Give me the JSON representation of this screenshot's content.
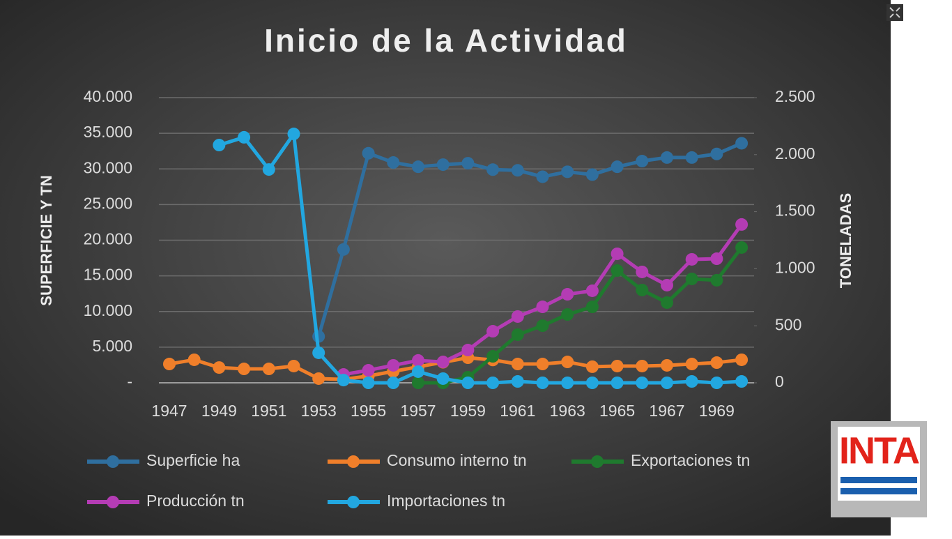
{
  "chart_data": {
    "type": "line",
    "title": "Inicio de la Actividad",
    "y_label": "SUPERFICIE Y TN",
    "y2_label": "TONELADAS",
    "categories": [
      "1947",
      null,
      "1949",
      null,
      "1951",
      null,
      "1953",
      null,
      "1955",
      null,
      "1957",
      null,
      "1959",
      null,
      "1961",
      null,
      "1963",
      null,
      "1965",
      null,
      "1967",
      null,
      "1969",
      null
    ],
    "series": [
      {
        "name": "Superficie ha",
        "color": "#2f6f9f",
        "axis": "y",
        "values": [
          null,
          null,
          null,
          null,
          null,
          null,
          6500,
          18700,
          32200,
          30900,
          30300,
          30600,
          30800,
          29900,
          29800,
          28900,
          29600,
          29200,
          30300,
          31100,
          31600,
          31600,
          32100,
          33600
        ]
      },
      {
        "name": "Consumo interno tn",
        "color": "#f07f2a",
        "axis": "y2",
        "values": [
          165,
          202,
          134,
          122,
          122,
          147,
          37,
          30,
          60,
          100,
          140,
          180,
          220,
          200,
          165,
          165,
          183,
          141,
          147,
          147,
          153,
          165,
          177,
          202
        ]
      },
      {
        "name": "Exportaciones tn",
        "color": "#1f7a2e",
        "axis": "y2",
        "values": [
          null,
          null,
          null,
          null,
          null,
          null,
          null,
          null,
          null,
          null,
          0,
          0,
          49,
          232,
          422,
          501,
          599,
          666,
          984,
          813,
          703,
          911,
          899,
          1186
        ]
      },
      {
        "name": "Producción tn",
        "color": "#b43cb4",
        "axis": "y2",
        "values": [
          null,
          null,
          null,
          null,
          null,
          null,
          null,
          73,
          110,
          153,
          196,
          183,
          287,
          452,
          581,
          666,
          776,
          807,
          1131,
          972,
          856,
          1082,
          1088,
          1388
        ]
      },
      {
        "name": "Importaciones tn",
        "color": "#22a7e0",
        "axis": "y2",
        "values": [
          null,
          null,
          2084,
          2152,
          1870,
          2182,
          263,
          24,
          0,
          0,
          98,
          37,
          0,
          0,
          12,
          0,
          0,
          0,
          0,
          0,
          0,
          12,
          0,
          12
        ]
      }
    ],
    "ylim": [
      0,
      40000
    ],
    "yticks": [
      {
        "value": 0,
        "label": "-"
      },
      {
        "value": 5000,
        "label": "5.000"
      },
      {
        "value": 10000,
        "label": "10.000"
      },
      {
        "value": 15000,
        "label": "15.000"
      },
      {
        "value": 20000,
        "label": "20.000"
      },
      {
        "value": 25000,
        "label": "25.000"
      },
      {
        "value": 30000,
        "label": "30.000"
      },
      {
        "value": 35000,
        "label": "35.000"
      },
      {
        "value": 40000,
        "label": "40.000"
      }
    ],
    "y2lim": [
      0,
      2500
    ],
    "y2ticks": [
      0,
      500,
      {
        "value": 1000,
        "label": "1.000"
      },
      {
        "value": 1500,
        "label": "1.500"
      },
      {
        "value": 2000,
        "label": "2.000"
      },
      {
        "value": 2500,
        "label": "2.500"
      }
    ],
    "grid": true,
    "legend": "bottom"
  },
  "logo": {
    "text": "INTA"
  }
}
